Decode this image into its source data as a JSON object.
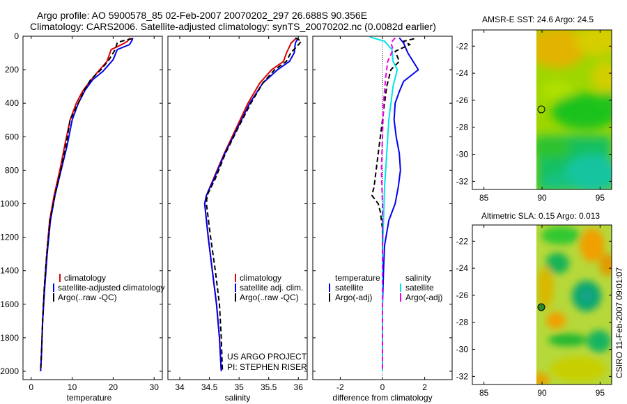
{
  "header": {
    "line1": "Argo profile: AO 5900578_85 02-Feb-2007 20070202_297 26.688S 90.356E",
    "line2": "Climatology: CARS2006. Satellite-adjusted climatology: synTS_20070202.nc (0.0082d earlier)"
  },
  "side_label": "CSIRO 11-Feb-2007 09:01:07",
  "credit": {
    "line1": "US ARGO PROJECT",
    "line2": "PI: STEPHEN RISER"
  },
  "colors": {
    "climatology": "#dd0000",
    "satellite": "#0000ee",
    "argo": "#000000",
    "satellite_sal": "#00e5e5",
    "argo_sal_diff": "#ee00ee",
    "map_marker_sst": "#000000",
    "map_marker_sla": "#2a8a2a"
  },
  "chart_data": [
    {
      "type": "line",
      "name": "temperature-profile",
      "xlabel": "temperature",
      "xlim": [
        -2,
        32
      ],
      "ylim": [
        0,
        2050
      ],
      "y_inverted": true,
      "xticks": [
        0,
        10,
        20,
        30
      ],
      "yticks": [
        0,
        200,
        400,
        600,
        800,
        1000,
        1200,
        1400,
        1600,
        1800,
        2000
      ],
      "legend": [
        "climatology",
        "satellite-adjusted climatology",
        "Argo(..raw -QC)"
      ],
      "series": [
        {
          "name": "climatology",
          "color": "#dd0000",
          "dash": false,
          "points": [
            [
              24.1,
              10
            ],
            [
              23.5,
              30
            ],
            [
              22.5,
              45
            ],
            [
              19.5,
              80
            ],
            [
              18.5,
              150
            ],
            [
              16,
              220
            ],
            [
              14,
              280
            ],
            [
              12.5,
              330
            ],
            [
              11,
              400
            ],
            [
              9.5,
              500
            ],
            [
              8.2,
              650
            ],
            [
              7,
              800
            ],
            [
              5.6,
              950
            ],
            [
              4.5,
              1100
            ],
            [
              3.8,
              1300
            ],
            [
              3.2,
              1500
            ],
            [
              2.8,
              1700
            ],
            [
              2.5,
              1900
            ],
            [
              2.3,
              2000
            ]
          ]
        },
        {
          "name": "satellite-adjusted climatology",
          "color": "#0000ee",
          "dash": false,
          "points": [
            [
              24.8,
              10
            ],
            [
              24.6,
              25
            ],
            [
              24,
              50
            ],
            [
              21,
              80
            ],
            [
              20,
              140
            ],
            [
              17.5,
              210
            ],
            [
              15,
              260
            ],
            [
              13.2,
              320
            ],
            [
              11.5,
              400
            ],
            [
              10,
              500
            ],
            [
              8.8,
              650
            ],
            [
              7.3,
              800
            ],
            [
              5.8,
              950
            ],
            [
              4.7,
              1100
            ],
            [
              3.9,
              1300
            ],
            [
              3.3,
              1500
            ],
            [
              2.8,
              1700
            ],
            [
              2.5,
              1900
            ],
            [
              2.3,
              2000
            ]
          ]
        },
        {
          "name": "Argo(..raw -QC)",
          "color": "#000000",
          "dash": true,
          "points": [
            [
              24.6,
              15
            ],
            [
              22,
              30
            ],
            [
              21,
              40
            ],
            [
              20.5,
              80
            ],
            [
              19,
              140
            ],
            [
              17,
              200
            ],
            [
              14.5,
              260
            ],
            [
              13,
              320
            ],
            [
              11.5,
              400
            ],
            [
              9.5,
              500
            ],
            [
              8.5,
              650
            ],
            [
              7.2,
              800
            ],
            [
              5.8,
              950
            ],
            [
              4.6,
              1100
            ],
            [
              3.8,
              1300
            ],
            [
              3.2,
              1500
            ],
            [
              2.8,
              1700
            ],
            [
              2.5,
              1900
            ],
            [
              2.3,
              2000
            ]
          ]
        }
      ]
    },
    {
      "type": "line",
      "name": "salinity-profile",
      "xlabel": "salinity",
      "xlim": [
        33.8,
        36.15
      ],
      "ylim": [
        0,
        2050
      ],
      "y_inverted": true,
      "xticks": [
        34,
        34.5,
        35,
        35.5,
        36
      ],
      "legend": [
        "climatology",
        "satellite adj. clim.",
        "Argo(..raw -QC)"
      ],
      "series": [
        {
          "name": "climatology",
          "color": "#dd0000",
          "dash": false,
          "points": [
            [
              35.97,
              10
            ],
            [
              35.88,
              40
            ],
            [
              35.8,
              100
            ],
            [
              35.75,
              150
            ],
            [
              35.55,
              200
            ],
            [
              35.35,
              280
            ],
            [
              35.15,
              400
            ],
            [
              34.95,
              550
            ],
            [
              34.75,
              700
            ],
            [
              34.57,
              850
            ],
            [
              34.45,
              950
            ],
            [
              34.42,
              1000
            ],
            [
              34.48,
              1200
            ],
            [
              34.55,
              1400
            ],
            [
              34.62,
              1600
            ],
            [
              34.67,
              1800
            ],
            [
              34.7,
              2000
            ]
          ]
        },
        {
          "name": "satellite adj. clim.",
          "color": "#0000ee",
          "dash": false,
          "points": [
            [
              36.0,
              10
            ],
            [
              35.95,
              40
            ],
            [
              35.93,
              100
            ],
            [
              35.85,
              150
            ],
            [
              35.65,
              200
            ],
            [
              35.4,
              280
            ],
            [
              35.18,
              400
            ],
            [
              34.97,
              550
            ],
            [
              34.76,
              700
            ],
            [
              34.58,
              850
            ],
            [
              34.45,
              950
            ],
            [
              34.42,
              1000
            ],
            [
              34.48,
              1200
            ],
            [
              34.55,
              1400
            ],
            [
              34.62,
              1600
            ],
            [
              34.67,
              1800
            ],
            [
              34.7,
              2000
            ]
          ]
        },
        {
          "name": "Argo(..raw -QC)",
          "color": "#000000",
          "dash": true,
          "points": [
            [
              35.95,
              10
            ],
            [
              36.05,
              30
            ],
            [
              35.98,
              60
            ],
            [
              35.87,
              100
            ],
            [
              35.8,
              150
            ],
            [
              35.6,
              200
            ],
            [
              35.4,
              280
            ],
            [
              35.2,
              400
            ],
            [
              34.98,
              550
            ],
            [
              34.77,
              700
            ],
            [
              34.6,
              850
            ],
            [
              34.46,
              950
            ],
            [
              34.45,
              1000
            ],
            [
              34.52,
              1200
            ],
            [
              34.6,
              1400
            ],
            [
              34.67,
              1600
            ],
            [
              34.7,
              1800
            ],
            [
              34.72,
              2000
            ]
          ]
        }
      ]
    },
    {
      "type": "line",
      "name": "difference-profile",
      "xlabel": "difference from climatology",
      "xlim": [
        -3.3,
        3.3
      ],
      "ylim": [
        0,
        2050
      ],
      "y_inverted": true,
      "xticks": [
        -2,
        0,
        2
      ],
      "legend": [
        "temperature",
        "satellite",
        "Argo(-adj)",
        "salinity",
        "satellite",
        "Argo(-adj)"
      ],
      "series": [
        {
          "name": "temperature satellite",
          "color": "#0000ee",
          "dash": false,
          "points": [
            [
              0.8,
              10
            ],
            [
              1.0,
              40
            ],
            [
              1.2,
              100
            ],
            [
              1.7,
              200
            ],
            [
              1.0,
              270
            ],
            [
              0.8,
              330
            ],
            [
              0.6,
              400
            ],
            [
              0.55,
              500
            ],
            [
              0.65,
              600
            ],
            [
              0.8,
              700
            ],
            [
              0.85,
              800
            ],
            [
              0.75,
              900
            ],
            [
              0.6,
              1000
            ],
            [
              0.3,
              1100
            ],
            [
              0.1,
              1250
            ],
            [
              0.05,
              1400
            ],
            [
              0,
              1600
            ],
            [
              0,
              2000
            ]
          ]
        },
        {
          "name": "temperature Argo(-adj)",
          "color": "#000000",
          "dash": true,
          "points": [
            [
              1.5,
              15
            ],
            [
              1.0,
              30
            ],
            [
              1.3,
              50
            ],
            [
              0.6,
              90
            ],
            [
              0.8,
              150
            ],
            [
              0.4,
              200
            ],
            [
              0.2,
              300
            ],
            [
              0.1,
              400
            ],
            [
              0,
              500
            ],
            [
              -0.2,
              700
            ],
            [
              -0.3,
              800
            ],
            [
              -0.4,
              900
            ],
            [
              -0.5,
              950
            ],
            [
              -0.2,
              1000
            ],
            [
              -0.1,
              1050
            ],
            [
              0,
              1150
            ],
            [
              0,
              1400
            ],
            [
              0,
              2000
            ]
          ]
        },
        {
          "name": "salinity satellite",
          "color": "#00e5e5",
          "dash": false,
          "points": [
            [
              -0.6,
              5
            ],
            [
              0.1,
              30
            ],
            [
              0.45,
              80
            ],
            [
              0.5,
              150
            ],
            [
              0.7,
              200
            ],
            [
              0.6,
              250
            ],
            [
              0.5,
              300
            ],
            [
              0.4,
              400
            ],
            [
              0.3,
              500
            ],
            [
              0.2,
              700
            ],
            [
              0.1,
              900
            ],
            [
              0.05,
              1100
            ],
            [
              0,
              1300
            ],
            [
              0,
              2000
            ]
          ]
        },
        {
          "name": "salinity Argo(-adj)",
          "color": "#ee00ee",
          "dash": true,
          "points": [
            [
              0.6,
              10
            ],
            [
              0.4,
              40
            ],
            [
              0.5,
              80
            ],
            [
              0.25,
              150
            ],
            [
              0.15,
              250
            ],
            [
              0.05,
              400
            ],
            [
              0,
              600
            ],
            [
              -0.05,
              800
            ],
            [
              0,
              1000
            ],
            [
              0,
              2000
            ]
          ]
        }
      ]
    },
    {
      "type": "heatmap",
      "name": "sst-map",
      "title": "AMSR-E SST: 24.6 Argo: 24.5",
      "xlim": [
        84,
        96
      ],
      "ylim": [
        -32.6,
        -20.8
      ],
      "xticks": [
        85,
        90,
        95
      ],
      "yticks": [
        -22,
        -24,
        -26,
        -28,
        -30,
        -32
      ],
      "data_lon_range": [
        90,
        96
      ],
      "argo_position": [
        90.356,
        -26.688
      ]
    },
    {
      "type": "heatmap",
      "name": "sla-map",
      "title": "Altimetric SLA: 0.15 Argo: 0.013",
      "xlim": [
        84,
        96
      ],
      "ylim": [
        -32.6,
        -20.8
      ],
      "xticks": [
        85,
        90,
        95
      ],
      "yticks": [
        -22,
        -24,
        -26,
        -28,
        -30,
        -32
      ],
      "data_lon_range": [
        90,
        96
      ],
      "argo_position": [
        90.356,
        -26.688
      ]
    }
  ]
}
